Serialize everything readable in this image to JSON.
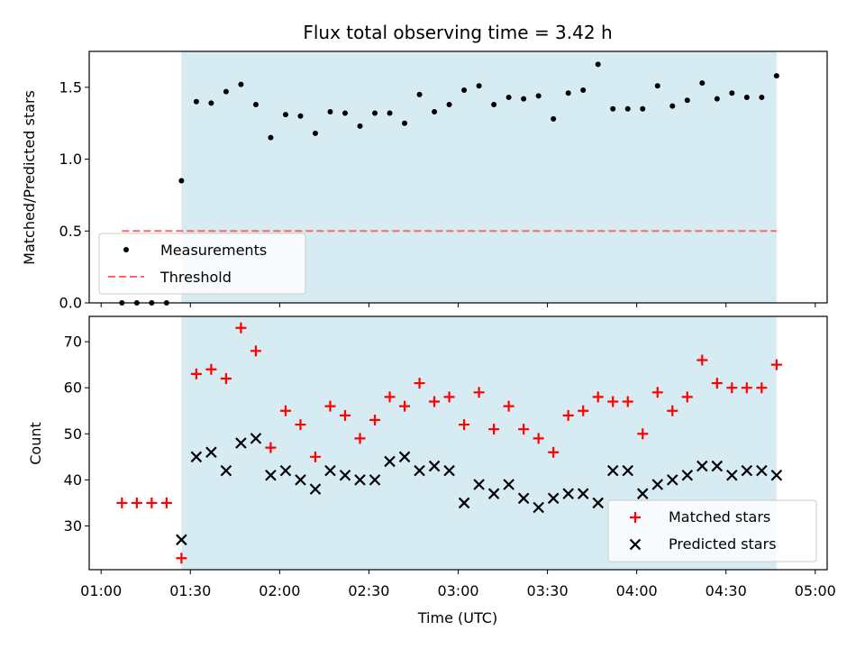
{
  "chart_data": [
    {
      "type": "scatter",
      "title": "Flux total observing time = 3.42 h",
      "xlabel": "",
      "ylabel": "Matched/Predicted stars",
      "xlim": [
        "00:56",
        "05:04"
      ],
      "ylim": [
        0,
        1.75
      ],
      "x_ticks": [
        "01:00",
        "01:30",
        "02:00",
        "02:30",
        "03:00",
        "03:30",
        "04:00",
        "04:30",
        "05:00"
      ],
      "y_ticks": [
        "0.0",
        "0.5",
        "1.0",
        "1.5"
      ],
      "y_tick_values": [
        0,
        0.5,
        1.0,
        1.5
      ],
      "observing_span": {
        "start": "01:27",
        "end": "04:47",
        "color": "#add8e6"
      },
      "legend": {
        "placement": "lower-left",
        "entries": [
          "Measurements",
          "Threshold"
        ]
      },
      "threshold": {
        "name": "Threshold",
        "value": 0.5,
        "x_start": "01:07",
        "x_end": "04:47",
        "color": "#ff6666"
      },
      "series": [
        {
          "name": "Measurements",
          "color": "#000000",
          "x": [
            "01:07",
            "01:12",
            "01:17",
            "01:22",
            "01:27",
            "01:32",
            "01:37",
            "01:42",
            "01:47",
            "01:52",
            "01:57",
            "02:02",
            "02:07",
            "02:12",
            "02:17",
            "02:22",
            "02:27",
            "02:32",
            "02:37",
            "02:42",
            "02:47",
            "02:52",
            "02:57",
            "03:02",
            "03:07",
            "03:12",
            "03:17",
            "03:22",
            "03:27",
            "03:32",
            "03:37",
            "03:42",
            "03:47",
            "03:52",
            "03:57",
            "04:02",
            "04:07",
            "04:12",
            "04:17",
            "04:22",
            "04:27",
            "04:32",
            "04:37",
            "04:42",
            "04:47"
          ],
          "y": [
            0,
            0,
            0,
            0,
            0.85,
            1.4,
            1.39,
            1.47,
            1.52,
            1.38,
            1.15,
            1.31,
            1.3,
            1.18,
            1.33,
            1.32,
            1.23,
            1.32,
            1.32,
            1.25,
            1.45,
            1.33,
            1.38,
            1.48,
            1.51,
            1.38,
            1.43,
            1.42,
            1.44,
            1.28,
            1.46,
            1.48,
            1.66,
            1.35,
            1.35,
            1.35,
            1.51,
            1.37,
            1.41,
            1.53,
            1.42,
            1.46,
            1.43,
            1.43,
            1.58
          ]
        }
      ]
    },
    {
      "type": "scatter",
      "title": "",
      "xlabel": "Time (UTC)",
      "ylabel": "Count",
      "xlim": [
        "00:56",
        "05:04"
      ],
      "ylim": [
        20.5,
        75.5
      ],
      "x_ticks": [
        "01:00",
        "01:30",
        "02:00",
        "02:30",
        "03:00",
        "03:30",
        "04:00",
        "04:30",
        "05:00"
      ],
      "y_ticks": [
        "30",
        "40",
        "50",
        "60",
        "70"
      ],
      "y_tick_values": [
        30,
        40,
        50,
        60,
        70
      ],
      "observing_span": {
        "start": "01:27",
        "end": "04:47",
        "color": "#add8e6"
      },
      "legend": {
        "placement": "lower-right",
        "entries": [
          "Matched stars",
          "Predicted stars"
        ]
      },
      "series": [
        {
          "name": "Matched stars",
          "marker": "plus",
          "color": "#ff0000",
          "x": [
            "01:07",
            "01:12",
            "01:17",
            "01:22",
            "01:27",
            "01:32",
            "01:37",
            "01:42",
            "01:47",
            "01:52",
            "01:57",
            "02:02",
            "02:07",
            "02:12",
            "02:17",
            "02:22",
            "02:27",
            "02:32",
            "02:37",
            "02:42",
            "02:47",
            "02:52",
            "02:57",
            "03:02",
            "03:07",
            "03:12",
            "03:17",
            "03:22",
            "03:27",
            "03:32",
            "03:37",
            "03:42",
            "03:47",
            "03:52",
            "03:57",
            "04:02",
            "04:07",
            "04:12",
            "04:17",
            "04:22",
            "04:27",
            "04:32",
            "04:37",
            "04:42",
            "04:47"
          ],
          "y": [
            35,
            35,
            35,
            35,
            23,
            63,
            64,
            62,
            73,
            68,
            47,
            55,
            52,
            45,
            56,
            54,
            49,
            53,
            58,
            56,
            61,
            57,
            58,
            52,
            59,
            51,
            56,
            51,
            49,
            46,
            54,
            55,
            58,
            57,
            57,
            50,
            59,
            55,
            58,
            66,
            61,
            60,
            60,
            60,
            65
          ]
        },
        {
          "name": "Predicted stars",
          "marker": "x",
          "color": "#000000",
          "x": [
            "01:27",
            "01:32",
            "01:37",
            "01:42",
            "01:47",
            "01:52",
            "01:57",
            "02:02",
            "02:07",
            "02:12",
            "02:17",
            "02:22",
            "02:27",
            "02:32",
            "02:37",
            "02:42",
            "02:47",
            "02:52",
            "02:57",
            "03:02",
            "03:07",
            "03:12",
            "03:17",
            "03:22",
            "03:27",
            "03:32",
            "03:37",
            "03:42",
            "03:47",
            "03:52",
            "03:57",
            "04:02",
            "04:07",
            "04:12",
            "04:17",
            "04:22",
            "04:27",
            "04:32",
            "04:37",
            "04:42",
            "04:47"
          ],
          "y": [
            27,
            45,
            46,
            42,
            48,
            49,
            41,
            42,
            40,
            38,
            42,
            41,
            40,
            40,
            44,
            45,
            42,
            43,
            42,
            35,
            39,
            37,
            39,
            36,
            34,
            36,
            37,
            37,
            35,
            42,
            42,
            37,
            39,
            40,
            41,
            43,
            43,
            41,
            42,
            42,
            41
          ]
        }
      ]
    }
  ]
}
